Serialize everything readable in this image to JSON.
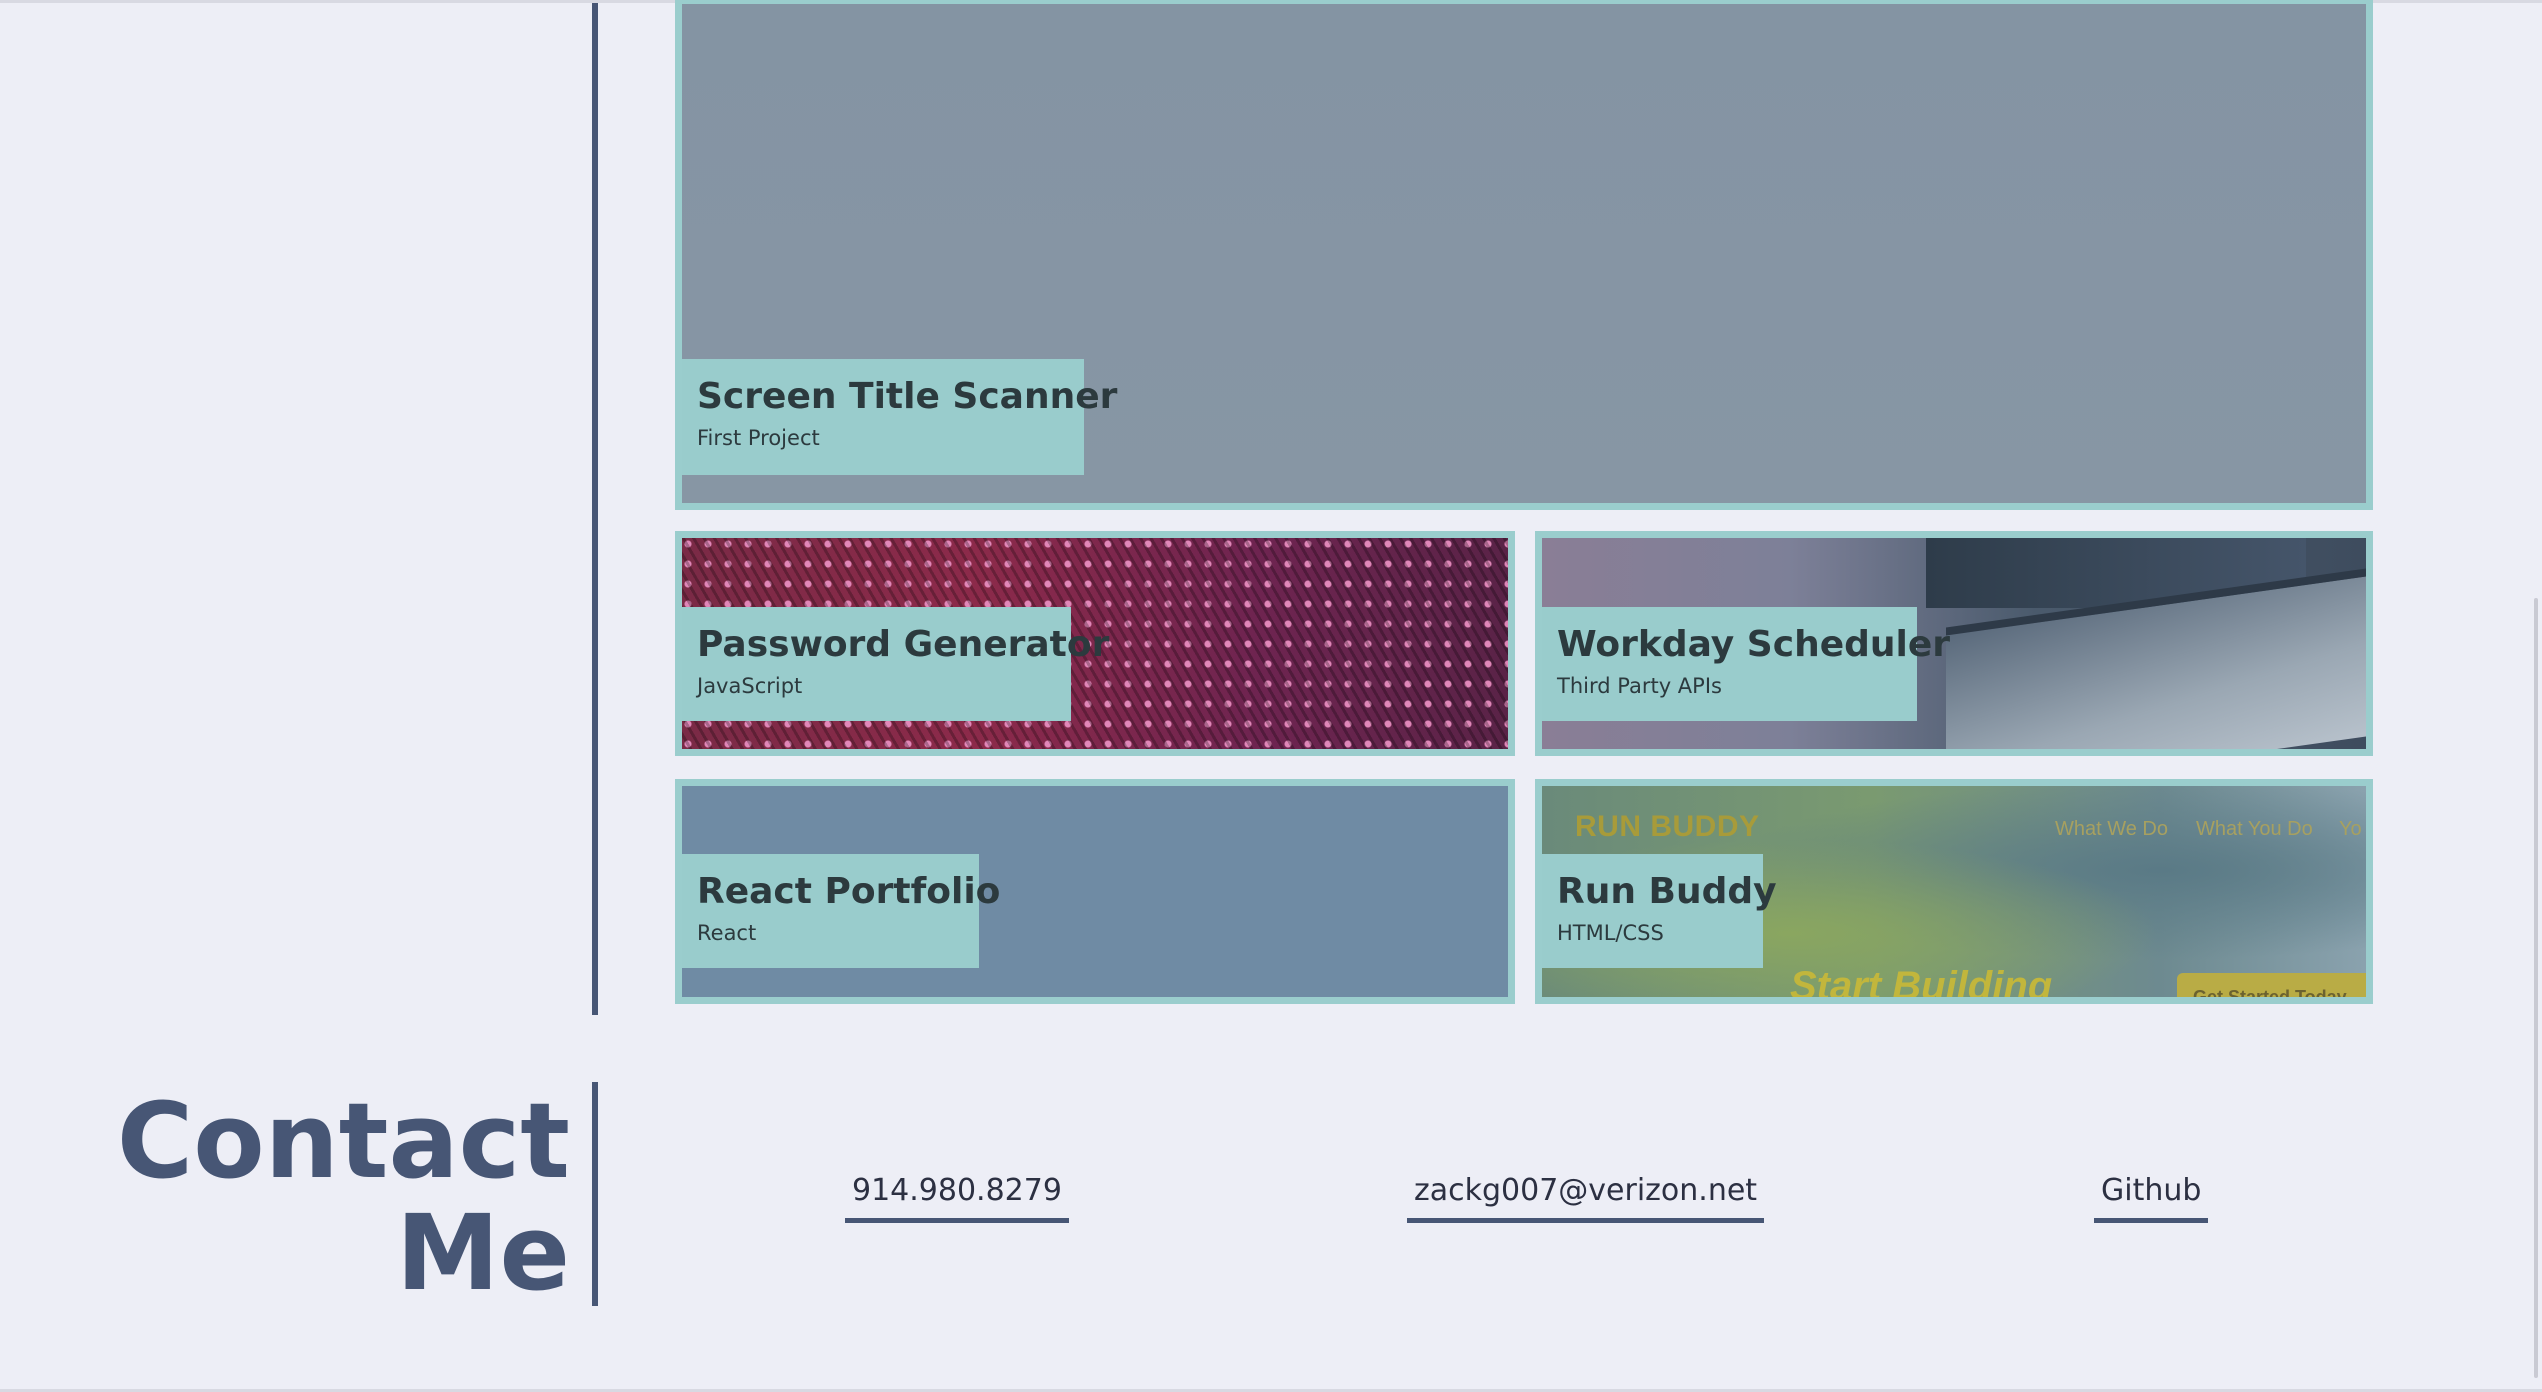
{
  "projects": {
    "featured": {
      "title": "Screen Title Scanner",
      "subtitle": "First Project"
    },
    "items": [
      {
        "title": "Password Generator",
        "subtitle": "JavaScript"
      },
      {
        "title": "Workday Scheduler",
        "subtitle": "Third Party APIs"
      },
      {
        "title": "React Portfolio",
        "subtitle": "React"
      },
      {
        "title": "Run Buddy",
        "subtitle": "HTML/CSS"
      }
    ],
    "run_buddy_preview": {
      "brand": "RUN BUDDY",
      "nav": [
        "What We Do",
        "What You Do",
        "Yo"
      ],
      "hero": "Start Building",
      "cta": "Get Started Today"
    }
  },
  "contact": {
    "title_line1": "Contact",
    "title_line2": "Me",
    "phone": "914.980.8279",
    "email": "zackg007@verizon.net",
    "github": "Github"
  },
  "colors": {
    "background": "#edeef6",
    "accent": "#475675",
    "card_border": "#9acdcd",
    "label_bg": "#99cccc"
  }
}
